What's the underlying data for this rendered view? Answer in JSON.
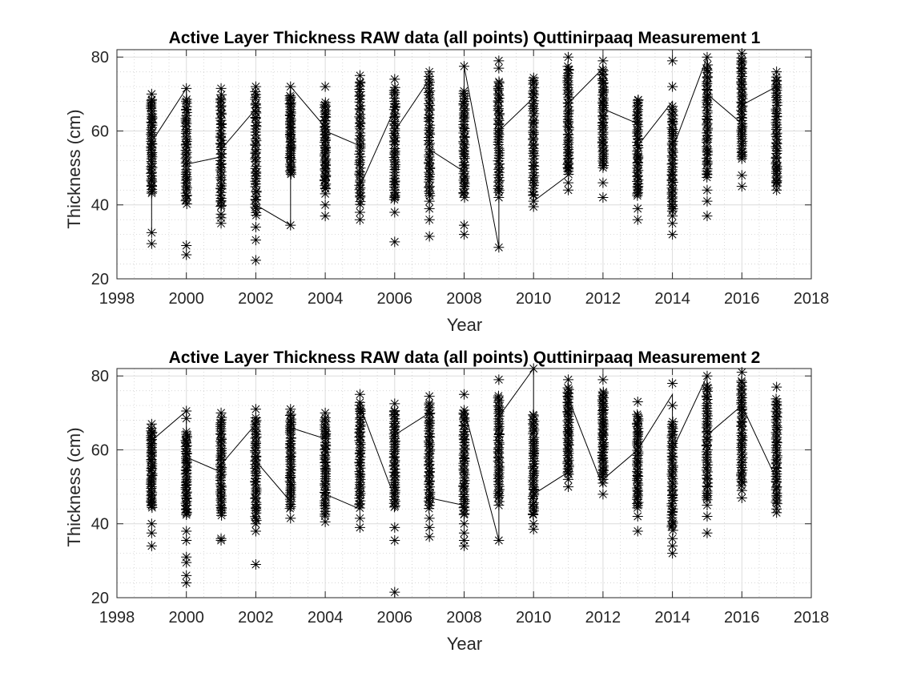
{
  "chart_data": [
    {
      "type": "scatter",
      "title": "Active Layer Thickness RAW data (all points) Quttinirpaaq Measurement 1",
      "xlabel": "Year",
      "ylabel": "Thickness (cm)",
      "xlim": [
        1998,
        2018
      ],
      "ylim": [
        20,
        82
      ],
      "xticks": [
        1998,
        2000,
        2002,
        2004,
        2006,
        2008,
        2010,
        2012,
        2014,
        2016,
        2018
      ],
      "yticks": [
        20,
        40,
        60,
        80
      ],
      "grid": true,
      "minor_grid": true,
      "marker": "asterisk",
      "color": "#000000",
      "years": [
        1999,
        2000,
        2001,
        2002,
        2003,
        2004,
        2005,
        2006,
        2007,
        2008,
        2009,
        2010,
        2011,
        2012,
        2013,
        2014,
        2015,
        2016,
        2017
      ],
      "ranges": [
        {
          "x": 1999,
          "dense_min": 43,
          "dense_max": 69,
          "outliers": [
            29.5,
            32.5,
            45,
            70
          ]
        },
        {
          "x": 2000,
          "dense_min": 40,
          "dense_max": 69,
          "outliers": [
            26.5,
            29,
            71.5
          ]
        },
        {
          "x": 2001,
          "dense_min": 39,
          "dense_max": 70,
          "outliers": [
            35,
            36.5,
            37.5,
            71.5
          ]
        },
        {
          "x": 2002,
          "dense_min": 37,
          "dense_max": 71,
          "outliers": [
            25,
            30.5,
            34,
            72
          ]
        },
        {
          "x": 2003,
          "dense_min": 48,
          "dense_max": 70,
          "outliers": [
            34.5,
            72
          ]
        },
        {
          "x": 2004,
          "dense_min": 44,
          "dense_max": 68,
          "outliers": [
            37,
            40,
            43,
            72
          ]
        },
        {
          "x": 2005,
          "dense_min": 40,
          "dense_max": 74,
          "outliers": [
            36,
            38,
            75
          ]
        },
        {
          "x": 2006,
          "dense_min": 41,
          "dense_max": 72,
          "outliers": [
            30,
            38,
            42,
            74
          ]
        },
        {
          "x": 2007,
          "dense_min": 42,
          "dense_max": 75,
          "outliers": [
            31.5,
            36,
            39,
            41,
            76
          ]
        },
        {
          "x": 2008,
          "dense_min": 42,
          "dense_max": 71,
          "outliers": [
            32,
            34.5,
            77.5
          ]
        },
        {
          "x": 2009,
          "dense_min": 43,
          "dense_max": 74,
          "outliers": [
            28.5,
            42,
            77,
            79
          ]
        },
        {
          "x": 2010,
          "dense_min": 42,
          "dense_max": 75,
          "outliers": [
            39.5,
            41
          ]
        },
        {
          "x": 2011,
          "dense_min": 48,
          "dense_max": 78,
          "outliers": [
            44,
            46,
            50,
            51,
            54,
            80
          ]
        },
        {
          "x": 2012,
          "dense_min": 50,
          "dense_max": 77,
          "outliers": [
            42,
            46,
            79
          ]
        },
        {
          "x": 2013,
          "dense_min": 42,
          "dense_max": 69,
          "outliers": [
            36,
            39,
            45
          ]
        },
        {
          "x": 2014,
          "dense_min": 38,
          "dense_max": 67,
          "outliers": [
            32,
            35,
            37,
            72,
            79
          ]
        },
        {
          "x": 2015,
          "dense_min": 47,
          "dense_max": 78,
          "outliers": [
            37,
            41,
            44,
            80
          ]
        },
        {
          "x": 2016,
          "dense_min": 52,
          "dense_max": 80,
          "outliers": [
            45,
            48,
            81
          ]
        },
        {
          "x": 2017,
          "dense_min": 45,
          "dense_max": 75,
          "outliers": [
            44,
            46,
            50,
            76
          ]
        }
      ],
      "line": {
        "x": [
          1999,
          1999,
          2000,
          2000,
          2001,
          2001,
          2002,
          2002,
          2003,
          2003,
          2004,
          2004,
          2005,
          2005,
          2006,
          2006,
          2007,
          2007,
          2008,
          2008,
          2009,
          2009,
          2010,
          2010,
          2011,
          2011,
          2012,
          2012,
          2013,
          2013,
          2014,
          2014,
          2015,
          2015,
          2016,
          2016,
          2017,
          2017
        ],
        "y": [
          32.5,
          57,
          71.5,
          51,
          53,
          55,
          66,
          40,
          34.5,
          72,
          61,
          60,
          56,
          45,
          66,
          60,
          74,
          55,
          49,
          77.5,
          28.5,
          60,
          69,
          41,
          48,
          67.5,
          77,
          66,
          62,
          56,
          68,
          55,
          80,
          70,
          62,
          67,
          72,
          72
        ]
      }
    },
    {
      "type": "scatter",
      "title": "Active Layer Thickness RAW data (all points) Quttinirpaaq  Measurement 2",
      "xlabel": "Year",
      "ylabel": "Thickness (cm)",
      "xlim": [
        1998,
        2018
      ],
      "ylim": [
        20,
        82
      ],
      "xticks": [
        1998,
        2000,
        2002,
        2004,
        2006,
        2008,
        2010,
        2012,
        2014,
        2016,
        2018
      ],
      "yticks": [
        20,
        40,
        60,
        80
      ],
      "grid": true,
      "minor_grid": true,
      "marker": "asterisk",
      "color": "#000000",
      "years": [
        1999,
        2000,
        2001,
        2002,
        2003,
        2004,
        2005,
        2006,
        2007,
        2008,
        2009,
        2010,
        2011,
        2012,
        2013,
        2014,
        2015,
        2016,
        2017
      ],
      "ranges": [
        {
          "x": 1999,
          "dense_min": 44,
          "dense_max": 66,
          "outliers": [
            34,
            37.5,
            40,
            67
          ]
        },
        {
          "x": 2000,
          "dense_min": 42,
          "dense_max": 65,
          "outliers": [
            24,
            26,
            29.5,
            31,
            35.5,
            38,
            68.5,
            70.5
          ]
        },
        {
          "x": 2001,
          "dense_min": 42,
          "dense_max": 69,
          "outliers": [
            35.5,
            36,
            70
          ]
        },
        {
          "x": 2002,
          "dense_min": 40,
          "dense_max": 69,
          "outliers": [
            29,
            38,
            71
          ]
        },
        {
          "x": 2003,
          "dense_min": 44,
          "dense_max": 70,
          "outliers": [
            41.5,
            71
          ]
        },
        {
          "x": 2004,
          "dense_min": 42,
          "dense_max": 69,
          "outliers": [
            40.5,
            70
          ]
        },
        {
          "x": 2005,
          "dense_min": 44,
          "dense_max": 73,
          "outliers": [
            39,
            41.5,
            75
          ]
        },
        {
          "x": 2006,
          "dense_min": 44,
          "dense_max": 71,
          "outliers": [
            21.5,
            35.5,
            39,
            72.5
          ]
        },
        {
          "x": 2007,
          "dense_min": 44,
          "dense_max": 73,
          "outliers": [
            36.5,
            39,
            41.5,
            74.5
          ]
        },
        {
          "x": 2008,
          "dense_min": 42,
          "dense_max": 71,
          "outliers": [
            34,
            35.5,
            37.5,
            40,
            75
          ]
        },
        {
          "x": 2009,
          "dense_min": 46,
          "dense_max": 75,
          "outliers": [
            35.5,
            45,
            79
          ]
        },
        {
          "x": 2010,
          "dense_min": 42,
          "dense_max": 70,
          "outliers": [
            38.5,
            40,
            82
          ]
        },
        {
          "x": 2011,
          "dense_min": 53,
          "dense_max": 77,
          "outliers": [
            50,
            52,
            79
          ]
        },
        {
          "x": 2012,
          "dense_min": 52,
          "dense_max": 76,
          "outliers": [
            48,
            51,
            79
          ]
        },
        {
          "x": 2013,
          "dense_min": 44,
          "dense_max": 70,
          "outliers": [
            38,
            42,
            73
          ]
        },
        {
          "x": 2014,
          "dense_min": 38,
          "dense_max": 68,
          "outliers": [
            32,
            34,
            36,
            72,
            78
          ]
        },
        {
          "x": 2015,
          "dense_min": 46,
          "dense_max": 78,
          "outliers": [
            37.5,
            42,
            45,
            80
          ]
        },
        {
          "x": 2016,
          "dense_min": 50,
          "dense_max": 79,
          "outliers": [
            47,
            49,
            81
          ]
        },
        {
          "x": 2017,
          "dense_min": 45,
          "dense_max": 74,
          "outliers": [
            43,
            44,
            77
          ]
        }
      ],
      "line": {
        "x": [
          1999,
          1999,
          2000,
          2000,
          2001,
          2001,
          2002,
          2002,
          2003,
          2003,
          2004,
          2004,
          2005,
          2005,
          2006,
          2006,
          2007,
          2007,
          2008,
          2008,
          2009,
          2009,
          2010,
          2010,
          2011,
          2011,
          2012,
          2012,
          2013,
          2013,
          2014,
          2014,
          2015,
          2015,
          2016,
          2016,
          2017,
          2017
        ],
        "y": [
          59,
          62.5,
          70.5,
          58,
          54,
          56,
          67,
          57,
          46,
          66,
          63,
          48,
          44,
          72,
          47,
          64,
          70,
          47,
          45,
          71,
          35.5,
          69,
          82,
          48,
          54,
          74,
          50,
          52,
          60,
          60,
          75,
          60,
          80,
          64,
          72,
          72,
          52,
          52
        ]
      }
    }
  ]
}
